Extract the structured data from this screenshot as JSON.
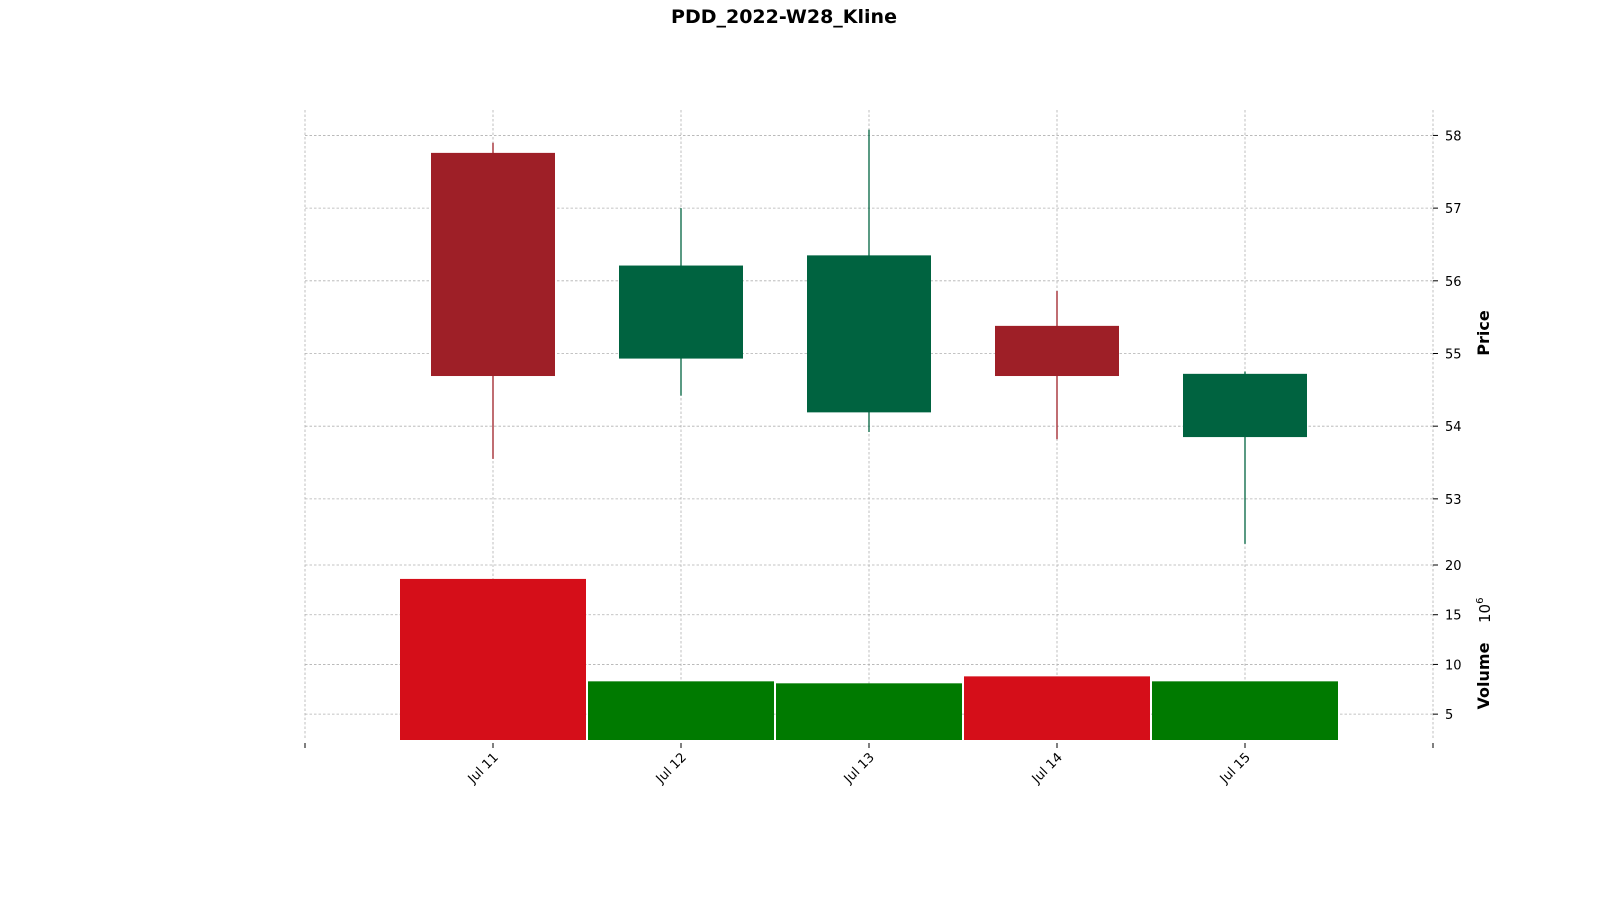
{
  "chart_data": {
    "type": "candlestick",
    "title": "PDD_2022-W28_Kline",
    "dates": [
      "Jul 11",
      "Jul 12",
      "Jul 13",
      "Jul 14",
      "Jul 15"
    ],
    "ohlc": [
      {
        "open": 57.76,
        "high": 57.9,
        "low": 53.55,
        "close": 54.69
      },
      {
        "open": 54.93,
        "high": 57.0,
        "low": 54.42,
        "close": 56.21
      },
      {
        "open": 54.19,
        "high": 58.08,
        "low": 53.92,
        "close": 56.35
      },
      {
        "open": 55.38,
        "high": 55.86,
        "low": 53.82,
        "close": 54.69
      },
      {
        "open": 53.85,
        "high": 54.75,
        "low": 52.38,
        "close": 54.72
      }
    ],
    "volume": [
      18.6,
      8.3,
      8.1,
      8.8,
      8.3
    ],
    "price_axis": {
      "label": "Price",
      "ticks": [
        53,
        54,
        55,
        56,
        57,
        58
      ],
      "range": [
        52.2,
        58.35
      ]
    },
    "volume_axis": {
      "label": "Volume",
      "exponent_base": "10",
      "exponent_power": "6",
      "ticks": [
        5,
        10,
        15,
        20
      ],
      "range": [
        2.4,
        20
      ]
    },
    "grid": true,
    "colors": {
      "up_candle": "#006340",
      "down_candle": "#9e1f27",
      "up_volume": "#007a00",
      "down_volume": "#d50e19",
      "grid": "#b0b0b0"
    }
  }
}
